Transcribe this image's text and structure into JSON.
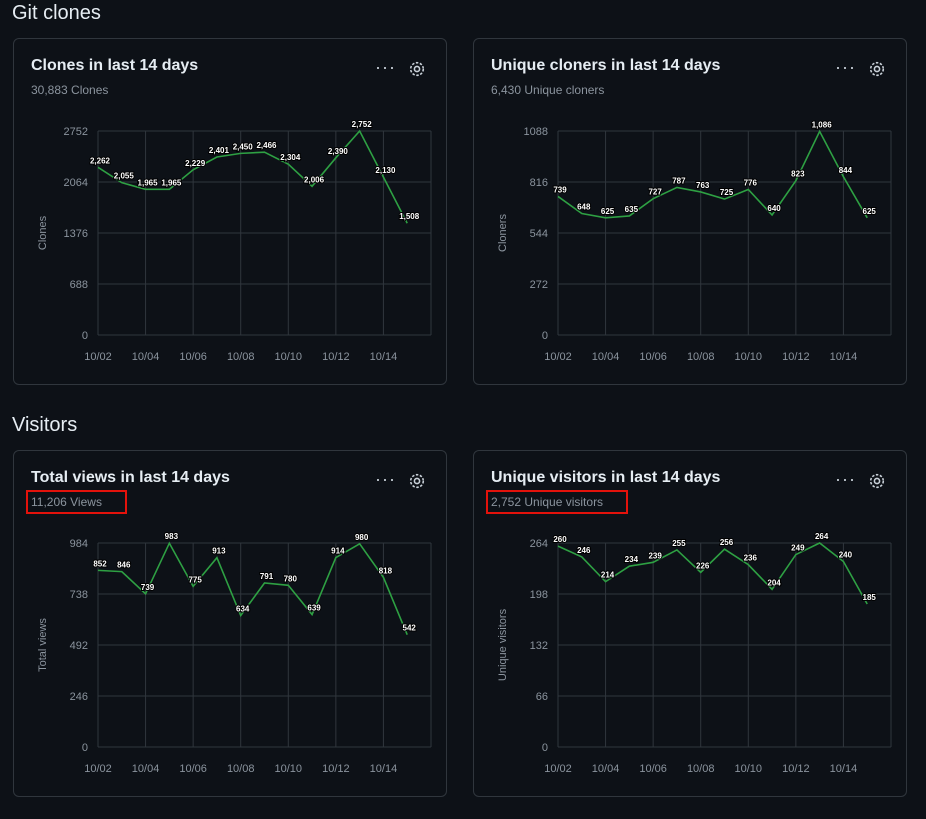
{
  "sections": {
    "git_clones": "Git clones",
    "visitors": "Visitors"
  },
  "colors": {
    "line": "#2ea043",
    "grid": "#30363d",
    "highlight": "#e3120b"
  },
  "icons": {
    "more": "kebab-horizontal-icon",
    "settings": "gear-icon"
  },
  "cards": [
    {
      "title": "Clones in last 14 days",
      "subtitle": "30,883 Clones"
    },
    {
      "title": "Unique cloners in last 14 days",
      "subtitle": "6,430 Unique cloners"
    },
    {
      "title": "Total views in last 14 days",
      "subtitle": "11,206 Views"
    },
    {
      "title": "Unique visitors in last 14 days",
      "subtitle": "2,752 Unique visitors"
    }
  ],
  "more_label": "···",
  "chart_data": [
    {
      "type": "line",
      "title": "Clones in last 14 days",
      "ylabel": "Clones",
      "ylim": [
        0,
        2752
      ],
      "yticks": [
        "0",
        "688",
        "1376",
        "2064",
        "2752"
      ],
      "xticks": [
        "10/02",
        "10/04",
        "10/06",
        "10/08",
        "10/10",
        "10/12",
        "10/14"
      ],
      "values": [
        2262,
        2055,
        1965,
        1965,
        2229,
        2401,
        2450,
        2466,
        2304,
        2006,
        2390,
        2752,
        2130,
        1508
      ],
      "labels": [
        "2,262",
        "2,055",
        "1,965",
        "1,965",
        "2,229",
        "2,401",
        "2,450",
        "2,466",
        "2,304",
        "2,006",
        "2,390",
        "2,752",
        "2,130",
        "1,508"
      ]
    },
    {
      "type": "line",
      "title": "Unique cloners in last 14 days",
      "ylabel": "Cloners",
      "ylim": [
        0,
        1088
      ],
      "yticks": [
        "0",
        "272",
        "544",
        "816",
        "1088"
      ],
      "xticks": [
        "10/02",
        "10/04",
        "10/06",
        "10/08",
        "10/10",
        "10/12",
        "10/14"
      ],
      "values": [
        739,
        648,
        625,
        635,
        727,
        787,
        763,
        725,
        776,
        640,
        823,
        1086,
        844,
        625
      ],
      "labels": [
        "739",
        "648",
        "625",
        "635",
        "727",
        "787",
        "763",
        "725",
        "776",
        "640",
        "823",
        "1,086",
        "844",
        "625"
      ]
    },
    {
      "type": "line",
      "title": "Total views in last 14 days",
      "ylabel": "Total views",
      "ylim": [
        0,
        984
      ],
      "yticks": [
        "0",
        "246",
        "492",
        "738",
        "984"
      ],
      "xticks": [
        "10/02",
        "10/04",
        "10/06",
        "10/08",
        "10/10",
        "10/12",
        "10/14"
      ],
      "values": [
        852,
        846,
        739,
        983,
        775,
        913,
        634,
        791,
        780,
        639,
        914,
        980,
        818,
        542
      ],
      "labels": [
        "852",
        "846",
        "739",
        "983",
        "775",
        "913",
        "634",
        "791",
        "780",
        "639",
        "914",
        "980",
        "818",
        "542"
      ]
    },
    {
      "type": "line",
      "title": "Unique visitors in last 14 days",
      "ylabel": "Unique visitors",
      "ylim": [
        0,
        264
      ],
      "yticks": [
        "0",
        "66",
        "132",
        "198",
        "264"
      ],
      "xticks": [
        "10/02",
        "10/04",
        "10/06",
        "10/08",
        "10/10",
        "10/12",
        "10/14"
      ],
      "values": [
        260,
        246,
        214,
        234,
        239,
        255,
        226,
        256,
        236,
        204,
        249,
        264,
        240,
        185
      ],
      "labels": [
        "260",
        "246",
        "214",
        "234",
        "239",
        "255",
        "226",
        "256",
        "236",
        "204",
        "249",
        "264",
        "240",
        "185"
      ]
    }
  ]
}
